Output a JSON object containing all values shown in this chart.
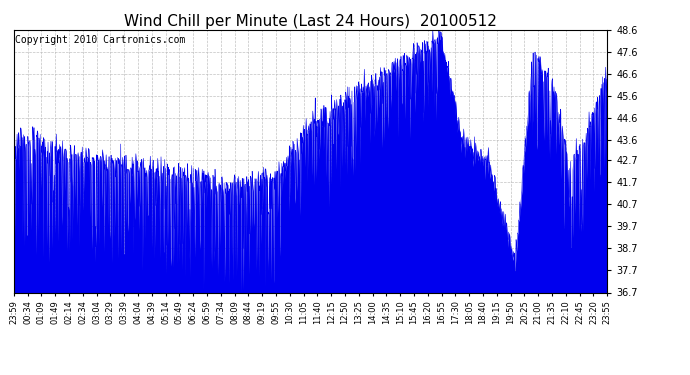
{
  "title": "Wind Chill per Minute (Last 24 Hours)  20100512",
  "copyright": "Copyright 2010 Cartronics.com",
  "ylim": [
    36.7,
    48.6
  ],
  "yticks": [
    36.7,
    37.7,
    38.7,
    39.7,
    40.7,
    41.7,
    42.7,
    43.6,
    44.6,
    45.6,
    46.6,
    47.6,
    48.6
  ],
  "fill_color": "#0000ee",
  "line_color": "#0000ee",
  "bg_color": "#ffffff",
  "grid_color": "#bbbbbb",
  "title_fontsize": 11,
  "copyright_fontsize": 7,
  "xtick_labels": [
    "23:59",
    "00:34",
    "01:09",
    "01:49",
    "02:14",
    "02:34",
    "03:04",
    "03:29",
    "03:39",
    "04:04",
    "04:39",
    "05:14",
    "05:49",
    "06:24",
    "06:59",
    "07:34",
    "08:09",
    "08:44",
    "09:19",
    "09:55",
    "10:30",
    "11:05",
    "11:40",
    "12:15",
    "12:50",
    "13:25",
    "14:00",
    "14:35",
    "15:10",
    "15:45",
    "16:20",
    "16:55",
    "17:30",
    "18:05",
    "18:40",
    "19:15",
    "19:50",
    "20:25",
    "21:00",
    "21:35",
    "22:10",
    "22:45",
    "23:20",
    "23:55"
  ]
}
